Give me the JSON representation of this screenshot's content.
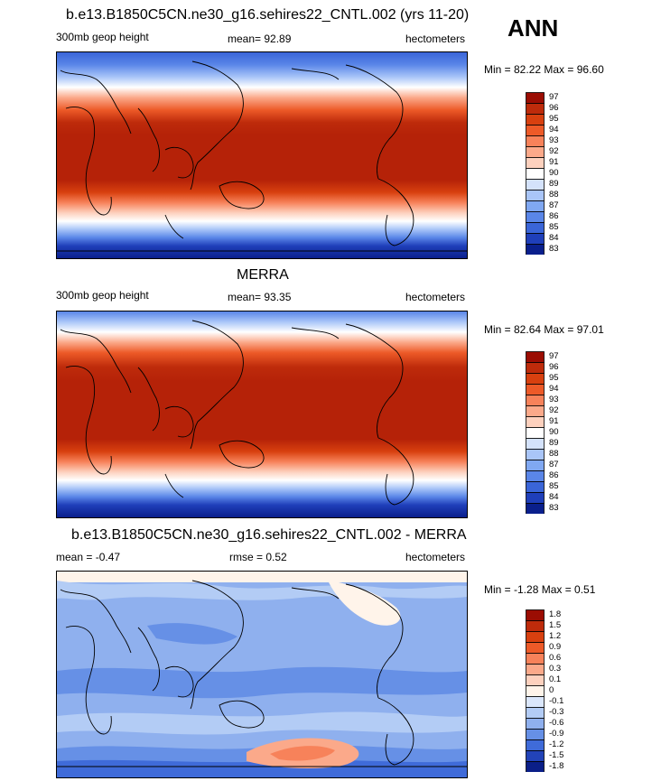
{
  "season": "ANN",
  "chart_data": [
    {
      "type": "heatmap",
      "id": "model",
      "title": "b.e13.B1850C5CN.ne30_g16.sehires22_CNTL.002 (yrs 11-20)",
      "variable": "300mb geop height",
      "mean_text": "mean=  92.89",
      "units": "hectometers",
      "minmax_text": "Min =  82.22 Max =  96.60",
      "min": 82.22,
      "max": 96.6,
      "colorbar_levels": [
        "97",
        "96",
        "95",
        "94",
        "93",
        "92",
        "91",
        "90",
        "89",
        "88",
        "87",
        "86",
        "85",
        "84",
        "83"
      ],
      "colorbar_colors": [
        "#9b0d03",
        "#be2b0b",
        "#d8400f",
        "#ed5a28",
        "#f7825a",
        "#fba98a",
        "#fdd1be",
        "#ffffff",
        "#d4e2fb",
        "#a9c5f8",
        "#80a8f2",
        "#5a86e8",
        "#3a65d8",
        "#1f3fba",
        "#0a1f8c"
      ]
    },
    {
      "type": "heatmap",
      "id": "obs",
      "title": "MERRA",
      "variable": "300mb geop height",
      "mean_text": "mean=  93.35",
      "units": "hectometers",
      "minmax_text": "Min =  82.64 Max =  97.01",
      "min": 82.64,
      "max": 97.01,
      "colorbar_levels": [
        "97",
        "96",
        "95",
        "94",
        "93",
        "92",
        "91",
        "90",
        "89",
        "88",
        "87",
        "86",
        "85",
        "84",
        "83"
      ],
      "colorbar_colors": [
        "#9b0d03",
        "#be2b0b",
        "#d8400f",
        "#ed5a28",
        "#f7825a",
        "#fba98a",
        "#fdd1be",
        "#ffffff",
        "#d4e2fb",
        "#a9c5f8",
        "#80a8f2",
        "#5a86e8",
        "#3a65d8",
        "#1f3fba",
        "#0a1f8c"
      ]
    },
    {
      "type": "heatmap",
      "id": "diff",
      "title": "b.e13.B1850C5CN.ne30_g16.sehires22_CNTL.002 - MERRA",
      "mean_text": "mean =  -0.47",
      "rmse_text": "rmse =   0.52",
      "units": "hectometers",
      "minmax_text": "Min =  -1.28 Max =   0.51",
      "min": -1.28,
      "max": 0.51,
      "colorbar_levels": [
        "1.8",
        "1.5",
        "1.2",
        "0.9",
        "0.6",
        "0.3",
        "0.1",
        "0",
        "-0.1",
        "-0.3",
        "-0.6",
        "-0.9",
        "-1.2",
        "-1.5",
        "-1.8"
      ],
      "colorbar_colors": [
        "#9b0d03",
        "#be2b0b",
        "#d8400f",
        "#ed5a28",
        "#f7825a",
        "#fba98a",
        "#fdd1be",
        "#fff4ea",
        "#dbe7fb",
        "#b3ccf5",
        "#8fb0ee",
        "#6690e6",
        "#3f6bd9",
        "#2243b8",
        "#0b1f88"
      ]
    }
  ]
}
